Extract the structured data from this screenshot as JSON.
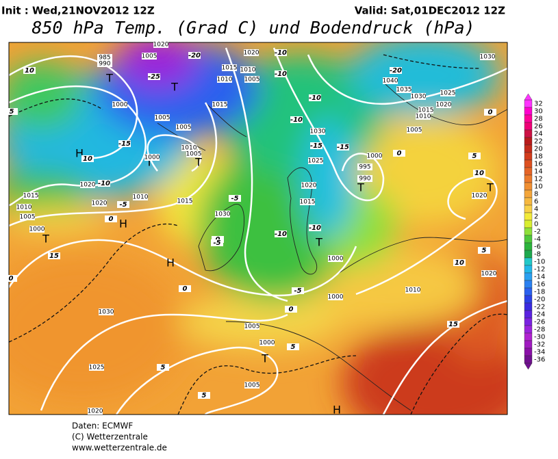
{
  "header": {
    "init": "Init : Wed,21NOV2012 12Z",
    "valid": "Valid: Sat,01DEC2012 12Z",
    "title": "850 hPa Temp. (Grad C) und Bodendruck (hPa)"
  },
  "legend": {
    "ticks": [
      32,
      30,
      28,
      26,
      24,
      22,
      20,
      18,
      16,
      14,
      12,
      10,
      8,
      6,
      4,
      2,
      0,
      -2,
      -4,
      -6,
      -8,
      -10,
      -12,
      -14,
      -16,
      -18,
      -20,
      -22,
      -24,
      -26,
      -28,
      -30,
      -32,
      -34,
      -36
    ],
    "colors": [
      "#ff33ff",
      "#ff00cc",
      "#ff0099",
      "#ee0077",
      "#cc1144",
      "#b81a1a",
      "#c42a1a",
      "#d23c1c",
      "#dd5020",
      "#e56426",
      "#ec7a2c",
      "#f08f32",
      "#f4a63a",
      "#f6b840",
      "#f8d048",
      "#f2ea3a",
      "#d8ee30",
      "#8ee03a",
      "#4ec83c",
      "#2cb43c",
      "#1ea84e",
      "#22c8c8",
      "#22b8e8",
      "#2aa0f0",
      "#2a80f0",
      "#2a60ee",
      "#2a40e6",
      "#3a2ae0",
      "#5a22e0",
      "#7a22e0",
      "#9a22dc",
      "#b022d0",
      "#a01ac0",
      "#8a10a8",
      "#701090"
    ]
  },
  "map": {
    "centers": [
      "H",
      "H",
      "H",
      "H",
      "T",
      "T",
      "T",
      "T",
      "T",
      "T",
      "T",
      "T",
      "T"
    ],
    "pressure_labels": [
      1005,
      985,
      990,
      1000,
      1005,
      1005,
      1020,
      1015,
      1010,
      1010,
      1005,
      1015,
      1010,
      1000,
      1005,
      1020,
      1015,
      1010,
      1005,
      1020,
      1010,
      1015,
      1030,
      1000,
      1030,
      1025,
      1020,
      1005,
      1000,
      1005,
      1030,
      1025,
      1020,
      1015,
      1000,
      995,
      990,
      1000,
      1000,
      1010,
      1020,
      1020,
      1005,
      1010,
      1015,
      1020,
      1025,
      1030,
      1035,
      1040,
      1030,
      1020
    ],
    "temp_labels": [
      -10,
      -10,
      -10,
      -10,
      -10,
      -10,
      -15,
      -15,
      -5,
      -5,
      -5,
      -20,
      -20,
      -25,
      -10,
      -15,
      0,
      0,
      0,
      0,
      0,
      0,
      0,
      5,
      5,
      5,
      5,
      5,
      5,
      10,
      10,
      10,
      10,
      15,
      15,
      -5
    ]
  },
  "footer": {
    "source": "Daten: ECMWF",
    "copyright": "(C) Wetterzentrale",
    "url": "www.wetterzentrale.de"
  }
}
